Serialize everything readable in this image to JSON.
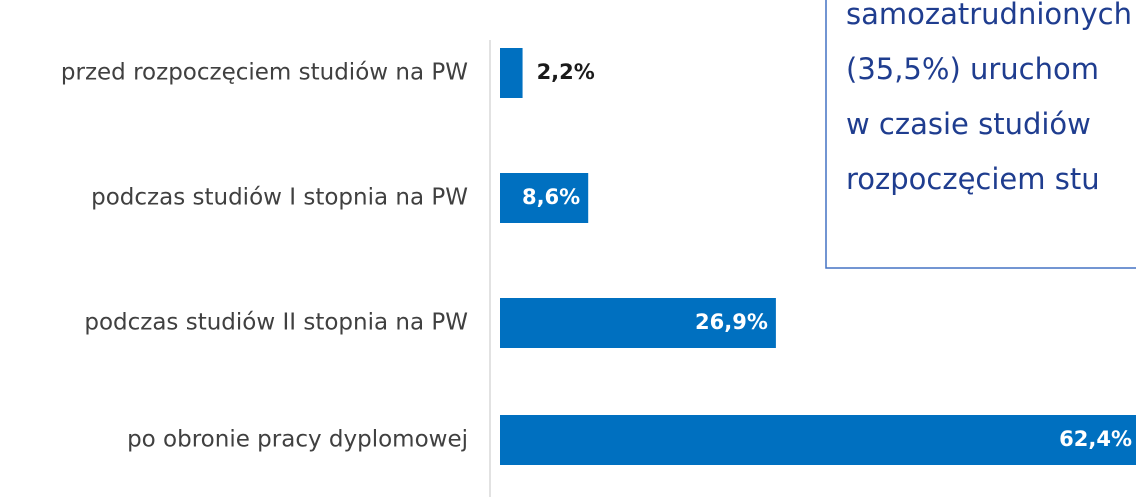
{
  "chart_data": {
    "type": "bar",
    "orientation": "horizontal",
    "categories": [
      "przed rozpoczęciem studiów na PW",
      "podczas studiów I stopnia na PW",
      "podczas studiów II stopnia na PW",
      "po obronie pracy dyplomowej"
    ],
    "values": [
      2.2,
      8.6,
      26.9,
      62.4
    ],
    "value_labels": [
      "2,2%",
      "8,6%",
      "26,9%",
      "62,4%"
    ],
    "color": "#0070c0",
    "annotation": [
      "samozatrudnionych",
      "(35,5%) uruchom",
      "w czasie studiów",
      "rozpoczęciem stu"
    ]
  }
}
